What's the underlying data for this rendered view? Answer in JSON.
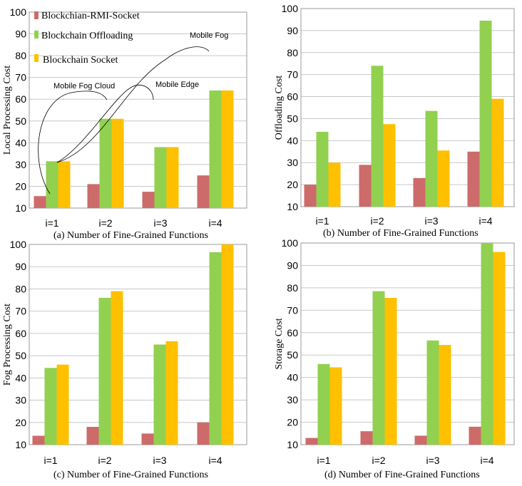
{
  "colors": {
    "rmi": "#cd6b6b",
    "offloading": "#92d050",
    "socket": "#ffc000",
    "grid": "#c8c8c8",
    "axis": "#9a9a9a",
    "text": "#000000"
  },
  "legend": [
    {
      "label": "Blockchian-RMI-Socket",
      "color": "#cd6b6b"
    },
    {
      "label": "Blockchain Offloading",
      "color": "#92d050"
    },
    {
      "label": "Blockchain Socket",
      "color": "#ffc000"
    }
  ],
  "annotations": [
    {
      "text": "Mobile Fog"
    },
    {
      "text": "Mobile Fog Cloud"
    },
    {
      "text": "Mobile Edge"
    }
  ],
  "chart_data": [
    {
      "type": "bar",
      "caption": "(a) Number of Fine-Grained Functions",
      "ylabel": "Local Processing Cost",
      "categories": [
        "i=1",
        "i=2",
        "i=3",
        "i=4"
      ],
      "ylim": [
        10,
        100
      ],
      "yticks": [
        "10",
        "20",
        "30",
        "40",
        "50",
        "60",
        "70",
        "80",
        "90",
        "100"
      ],
      "series": [
        {
          "name": "Blockchian-RMI-Socket",
          "values": [
            15.5,
            21,
            17.5,
            25
          ]
        },
        {
          "name": "Blockchain Offloading",
          "values": [
            31.5,
            51,
            38,
            64
          ]
        },
        {
          "name": "Blockchain Socket",
          "values": [
            31.5,
            51,
            38,
            64
          ]
        }
      ]
    },
    {
      "type": "bar",
      "caption": "(b)  Number of Fine-Grained Functions",
      "ylabel": "Offloading Cost",
      "categories": [
        "i=1",
        "i=2",
        "i=3",
        "i=4"
      ],
      "ylim": [
        10,
        100
      ],
      "yticks": [
        "10",
        "20",
        "30",
        "40",
        "50",
        "60",
        "70",
        "80",
        "90",
        "100"
      ],
      "series": [
        {
          "name": "Blockchian-RMI-Socket",
          "values": [
            20,
            29,
            23,
            35
          ]
        },
        {
          "name": "Blockchain Offloading",
          "values": [
            44,
            74,
            53.5,
            94.5
          ]
        },
        {
          "name": "Blockchain Socket",
          "values": [
            30,
            47.5,
            35.5,
            59
          ]
        }
      ]
    },
    {
      "type": "bar",
      "caption": "(c)  Number of Fine-Grained Functions",
      "ylabel": "Fog Processing Cost",
      "categories": [
        "i=1",
        "i=2",
        "i=3",
        "i=4"
      ],
      "ylim": [
        10,
        100
      ],
      "yticks": [
        "10",
        "20",
        "30",
        "40",
        "50",
        "60",
        "70",
        "80",
        "90",
        "100"
      ],
      "series": [
        {
          "name": "Blockchian-RMI-Socket",
          "values": [
            14,
            18,
            15,
            20
          ]
        },
        {
          "name": "Blockchain Offloading",
          "values": [
            44.5,
            76,
            55,
            96.5
          ]
        },
        {
          "name": "Blockchain Socket",
          "values": [
            46,
            79,
            56.5,
            100
          ]
        }
      ]
    },
    {
      "type": "bar",
      "caption": "(d) Number of Fine-Grained Functions",
      "ylabel": "Storage Cost",
      "categories": [
        "i=1",
        "i=2",
        "i=3",
        "i=4"
      ],
      "ylim": [
        10,
        100
      ],
      "yticks": [
        "10",
        "20",
        "30",
        "40",
        "50",
        "60",
        "70",
        "80",
        "90",
        "100"
      ],
      "series": [
        {
          "name": "Blockchian-RMI-Socket",
          "values": [
            13,
            16,
            14,
            18
          ]
        },
        {
          "name": "Blockchain Offloading",
          "values": [
            46,
            78.5,
            56.5,
            100
          ]
        },
        {
          "name": "Blockchain Socket",
          "values": [
            44.5,
            75.5,
            54.5,
            96
          ]
        }
      ]
    }
  ]
}
